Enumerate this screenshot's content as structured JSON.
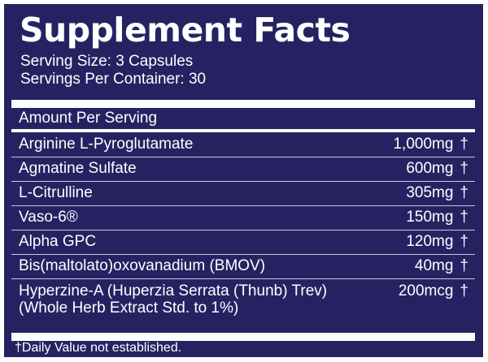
{
  "colors": {
    "background": "#262262",
    "text": "#ffffff",
    "rule": "#ffffff",
    "row_divider": "#c9c8dc"
  },
  "label": {
    "title": "Supplement Facts",
    "serving_size": "Serving Size: 3 Capsules",
    "servings_per_container": "Servings Per Container: 30",
    "amount_header": "Amount Per Serving",
    "ingredients": [
      {
        "name": "Arginine L-Pyroglutamate",
        "amount": "1,000mg",
        "dv": "†"
      },
      {
        "name": "Agmatine Sulfate",
        "amount": "600mg",
        "dv": "†"
      },
      {
        "name": "L-Citrulline",
        "amount": "305mg",
        "dv": "†"
      },
      {
        "name": "Vaso-6®",
        "amount": "150mg",
        "dv": "†"
      },
      {
        "name": "Alpha GPC",
        "amount": "120mg",
        "dv": "†"
      },
      {
        "name": "Bis(maltolato)oxovanadium (BMOV)",
        "amount": "40mg",
        "dv": "†"
      },
      {
        "name": "Hyperzine-A (Huperzia Serrata (Thunb) Trev)",
        "name_line2": "(Whole Herb Extract Std. to 1%)",
        "amount": "200mcg",
        "dv": "†"
      }
    ],
    "footnote": "†Daily Value not established."
  }
}
